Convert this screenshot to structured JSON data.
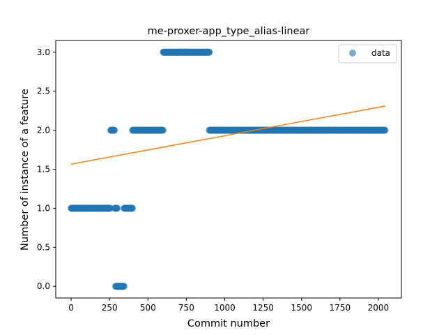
{
  "chart_data": {
    "type": "scatter",
    "title": "me-proxer-app_type_alias-linear",
    "xlabel": "Commit number",
    "ylabel": "Number of instance of a feature",
    "xlim": [
      -100,
      2150
    ],
    "ylim": [
      -0.15,
      3.15
    ],
    "xticks": [
      0,
      250,
      500,
      750,
      1000,
      1250,
      1500,
      1750,
      2000
    ],
    "yticks": [
      0.0,
      0.5,
      1.0,
      1.5,
      2.0,
      2.5,
      3.0
    ],
    "ytick_labels": [
      "0.0",
      "0.5",
      "1.0",
      "1.5",
      "2.0",
      "2.5",
      "3.0"
    ],
    "legend": {
      "position": "top-right",
      "entries": [
        "data"
      ]
    },
    "grid": false,
    "colors": {
      "scatter": "#1f77b4",
      "fit": "#ff7f0e"
    },
    "series": [
      {
        "name": "data",
        "kind": "scatter",
        "segments": [
          {
            "x_start": 0,
            "x_end": 255,
            "y": 1
          },
          {
            "x_start": 258,
            "x_end": 282,
            "y": 2
          },
          {
            "x_start": 285,
            "x_end": 300,
            "y": 1
          },
          {
            "x_start": 290,
            "x_end": 345,
            "y": 0
          },
          {
            "x_start": 345,
            "x_end": 400,
            "y": 1
          },
          {
            "x_start": 400,
            "x_end": 600,
            "y": 2
          },
          {
            "x_start": 600,
            "x_end": 900,
            "y": 3
          },
          {
            "x_start": 900,
            "x_end": 2045,
            "y": 2
          }
        ]
      },
      {
        "name": "",
        "kind": "line",
        "x": [
          0,
          2045
        ],
        "y": [
          1.565,
          2.31
        ]
      }
    ]
  }
}
